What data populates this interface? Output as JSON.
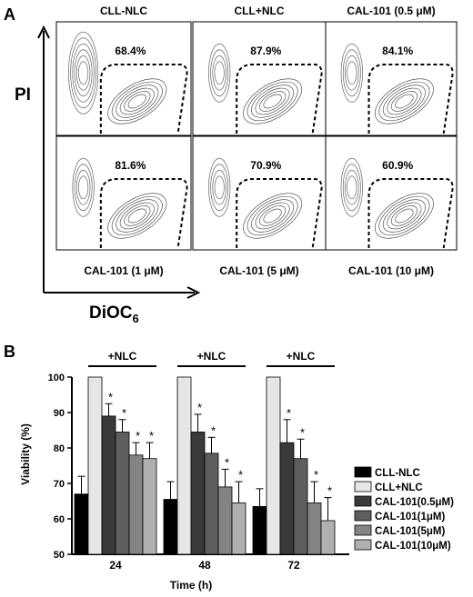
{
  "panel_a": {
    "label": "A",
    "y_axis_label": "PI",
    "x_axis_label_main": "DiOC",
    "x_axis_label_sub": "6",
    "plots": [
      {
        "title": "CLL-NLC",
        "percent": "68.4%",
        "title_position": "top"
      },
      {
        "title": "CLL+NLC",
        "percent": "87.9%",
        "title_position": "top"
      },
      {
        "title": "CAL-101 (0.5 μM)",
        "percent": "84.1%",
        "title_position": "top"
      },
      {
        "title": "CAL-101 (1 μM)",
        "percent": "81.6%",
        "title_position": "bottom"
      },
      {
        "title": "CAL-101 (5 μM)",
        "percent": "70.9%",
        "title_position": "bottom"
      },
      {
        "title": "CAL-101 (10 μM)",
        "percent": "60.9%",
        "title_position": "bottom"
      }
    ]
  },
  "chart_data": {
    "type": "bar",
    "panel_label": "B",
    "title": "",
    "xlabel": "Time (h)",
    "ylabel": "Viability (%)",
    "ylim": [
      50,
      100
    ],
    "yticks": [
      50,
      60,
      70,
      80,
      90,
      100
    ],
    "grid": false,
    "legend_position": "right",
    "categories": [
      "24",
      "48",
      "72"
    ],
    "group_headers": [
      "+NLC",
      "+NLC",
      "+NLC"
    ],
    "series": [
      {
        "name": "CLL-NLC",
        "color": "#000000",
        "values": [
          67,
          65.5,
          63.5
        ],
        "errors": [
          5,
          5,
          5
        ],
        "significant": [
          false,
          false,
          false
        ]
      },
      {
        "name": "CLL+NLC",
        "color": "#e6e6e6",
        "values": [
          100,
          100,
          100
        ],
        "errors": [
          0,
          0,
          0
        ],
        "significant": [
          false,
          false,
          false
        ]
      },
      {
        "name": "CAL-101(0.5μM)",
        "color": "#3a3a3a",
        "values": [
          89,
          84.5,
          81.5
        ],
        "errors": [
          3.5,
          5,
          6.5
        ],
        "significant": [
          true,
          true,
          true
        ]
      },
      {
        "name": "CAL-101(1μM)",
        "color": "#5e5e5e",
        "values": [
          84.5,
          78.5,
          77
        ],
        "errors": [
          3.5,
          4.5,
          5.5
        ],
        "significant": [
          true,
          true,
          true
        ]
      },
      {
        "name": "CAL-101(5μM)",
        "color": "#848484",
        "values": [
          78,
          69,
          64.5
        ],
        "errors": [
          3.5,
          5,
          6
        ],
        "significant": [
          true,
          true,
          true
        ]
      },
      {
        "name": "CAL-101(10μM)",
        "color": "#b0b0b0",
        "values": [
          77,
          64.5,
          59.5
        ],
        "errors": [
          4.5,
          6,
          6.5
        ],
        "significant": [
          true,
          true,
          true
        ]
      }
    ],
    "significance_marker": "*"
  }
}
